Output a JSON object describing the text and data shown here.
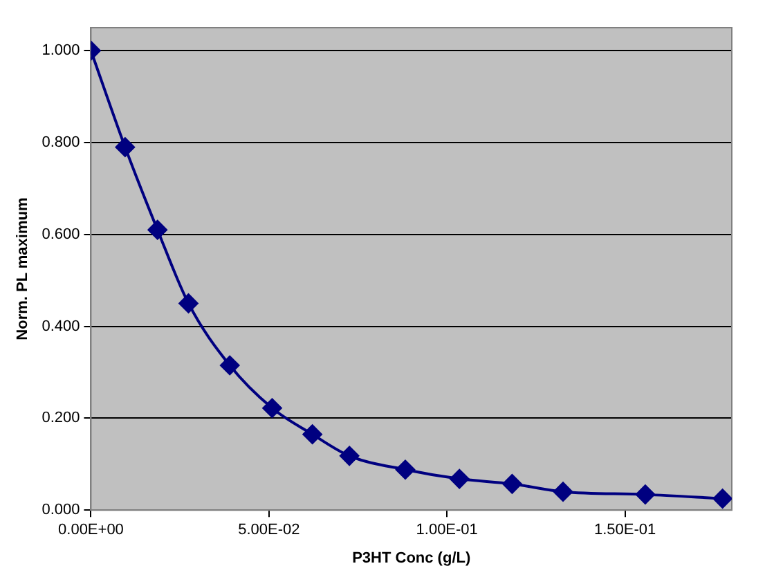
{
  "chart_data": {
    "type": "line",
    "xlabel": "P3HT Conc (g/L)",
    "ylabel": "Norm. PL maximum",
    "x": [
      0,
      0.0096,
      0.0187,
      0.0274,
      0.039,
      0.0509,
      0.0622,
      0.0726,
      0.0883,
      0.1035,
      0.1183,
      0.1326,
      0.1557,
      0.1774
    ],
    "series": [
      {
        "color": "#000080",
        "values": [
          1.0,
          0.79,
          0.61,
          0.45,
          0.315,
          0.222,
          0.165,
          0.118,
          0.088,
          0.068,
          0.057,
          0.04,
          0.034,
          0.025
        ]
      }
    ],
    "xlim": [
      0,
      0.18
    ],
    "xticks": [
      {
        "value": 0,
        "label": "0.00E+00"
      },
      {
        "value": 0.05,
        "label": "5.00E-02"
      },
      {
        "value": 0.1,
        "label": "1.00E-01"
      },
      {
        "value": 0.15,
        "label": "1.50E-01"
      }
    ],
    "ylim": [
      0,
      1.05
    ],
    "yticks": [
      {
        "value": 0,
        "label": "0.000"
      },
      {
        "value": 0.2,
        "label": "0.200"
      },
      {
        "value": 0.4,
        "label": "0.400"
      },
      {
        "value": 0.6,
        "label": "0.600"
      },
      {
        "value": 0.8,
        "label": "0.800"
      },
      {
        "value": 1.0,
        "label": "1.000"
      }
    ],
    "grid": "y",
    "legend": false,
    "marker": "diamond",
    "line_style": "solid"
  }
}
